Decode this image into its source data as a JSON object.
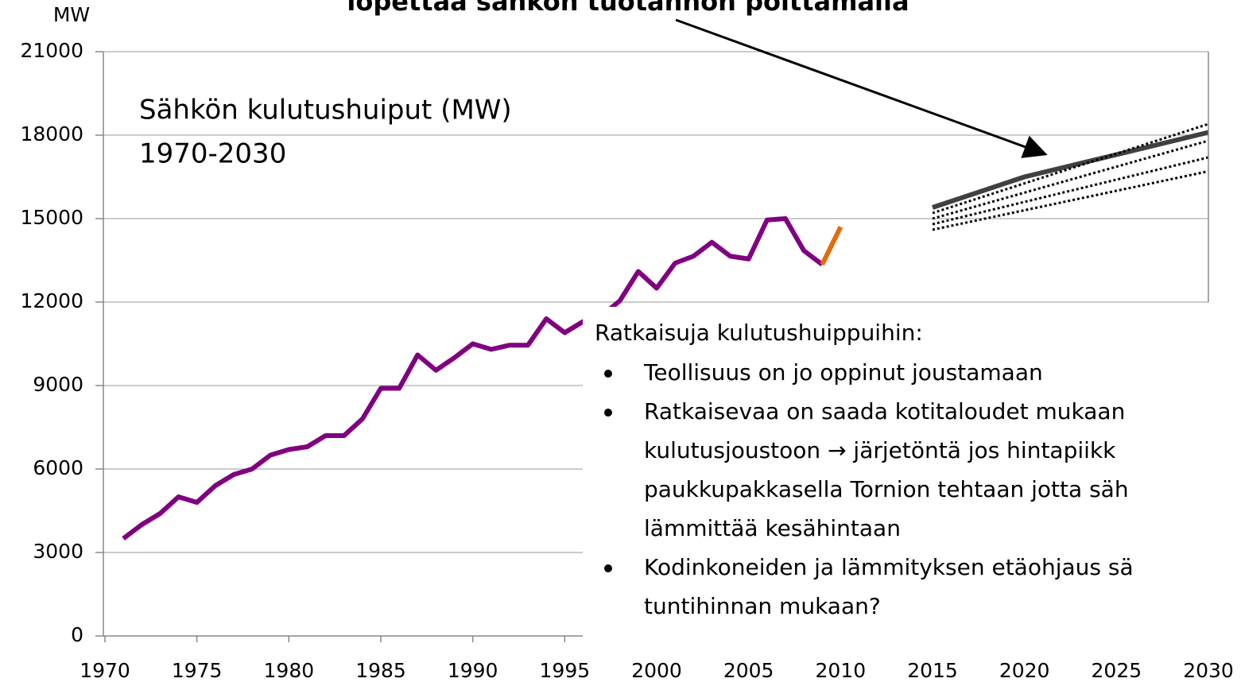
{
  "chart_data": {
    "type": "line",
    "title": "Sähkön kulutushuiput (MW)",
    "subtitle": "1970-2030",
    "y_label": "MW",
    "annotation": "lopettaa sähkön tuotannon polttamalla",
    "xlim": [
      1970,
      2030
    ],
    "xticks": [
      1970,
      1975,
      1980,
      1985,
      1990,
      1995,
      2000,
      2005,
      2010,
      2015,
      2020,
      2025,
      2030
    ],
    "ylim": [
      0,
      21000
    ],
    "yticks": [
      0,
      3000,
      6000,
      9000,
      12000,
      15000,
      18000,
      21000
    ],
    "grid": true,
    "series": [
      {
        "color": "#800080",
        "style": "solid",
        "x": [
          1971,
          1972,
          1973,
          1974,
          1975,
          1976,
          1977,
          1978,
          1979,
          1980,
          1981,
          1982,
          1983,
          1984,
          1985,
          1986,
          1987,
          1988,
          1989,
          1990,
          1991,
          1992,
          1993,
          1994,
          1995,
          1996,
          1997,
          1998,
          1999,
          2000,
          2001,
          2002,
          2003,
          2004,
          2005,
          2006,
          2007,
          2008,
          2009
        ],
        "values": [
          3500,
          4000,
          4400,
          5000,
          4800,
          5400,
          5800,
          6000,
          6500,
          6700,
          6800,
          7200,
          7200,
          7800,
          8900,
          8900,
          10100,
          9550,
          10000,
          10500,
          10300,
          10450,
          10450,
          11400,
          10900,
          11300,
          11500,
          12050,
          13100,
          12500,
          13400,
          13650,
          14150,
          13650,
          13550,
          14950,
          15000,
          13850,
          13350
        ]
      },
      {
        "color": "#e36c0a",
        "style": "solid",
        "x": [
          2009,
          2010
        ],
        "values": [
          13350,
          14700
        ]
      },
      {
        "color": "#404040",
        "style": "solid",
        "x": [
          2015,
          2020,
          2030
        ],
        "values": [
          15400,
          16500,
          18100
        ]
      },
      {
        "color": "#000000",
        "style": "dotted",
        "x": [
          2015,
          2030
        ],
        "values": [
          15200,
          18400
        ]
      },
      {
        "color": "#000000",
        "style": "dotted",
        "x": [
          2015,
          2030
        ],
        "values": [
          15000,
          17800
        ]
      },
      {
        "color": "#000000",
        "style": "dotted",
        "x": [
          2015,
          2030
        ],
        "values": [
          14800,
          17200
        ]
      },
      {
        "color": "#000000",
        "style": "dotted",
        "x": [
          2015,
          2030
        ],
        "values": [
          14600,
          16700
        ]
      }
    ],
    "textbox": {
      "heading": "Ratkaisuja kulutushuippuihin:",
      "items": [
        [
          "Teollisuus on jo oppinut joustamaan"
        ],
        [
          "Ratkaisevaa on saada kotitaloudet mukaan",
          "kulutusjoustoon → järjetöntä jos hintapiikk",
          "paukkupakkasella Tornion tehtaan jotta säh",
          "lämmittää kesähintaan"
        ],
        [
          "Kodinkoneiden ja lämmityksen etäohjaus sä",
          "tuntihinnan mukaan?"
        ]
      ]
    }
  }
}
